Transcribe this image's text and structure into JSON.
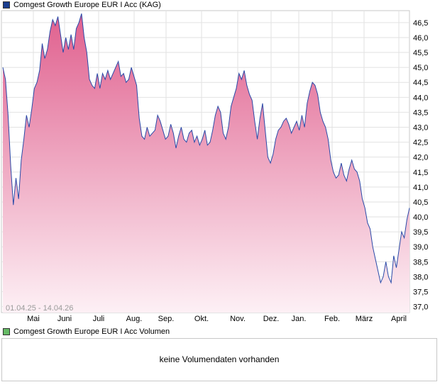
{
  "legend": {
    "price_label": "Comgest Growth Europe EUR I Acc (KAG)",
    "price_color": "#1a3d8f",
    "volume_label": "Comgest Growth Europe EUR I Acc Volumen",
    "volume_color": "#66bb66"
  },
  "volume": {
    "message": "keine Volumendaten vorhanden"
  },
  "chart_data": {
    "type": "area",
    "date_range_label": "01.04.25 - 14.04.26",
    "x_tick_labels": [
      "Mai",
      "Juni",
      "Juli",
      "Aug.",
      "Sep.",
      "Okt.",
      "Nov.",
      "Dez.",
      "Jan.",
      "Feb.",
      "März",
      "April"
    ],
    "y_tick_labels": [
      "37,0",
      "37,5",
      "38,0",
      "38,5",
      "39,0",
      "39,5",
      "40,0",
      "40,5",
      "41,0",
      "41,5",
      "42,0",
      "42,5",
      "43,0",
      "43,5",
      "44,0",
      "44,5",
      "45,0",
      "45,5",
      "46,0",
      "46,5"
    ],
    "ylim": [
      36.8,
      46.9
    ],
    "y_axis_side": "right",
    "grid": true,
    "line_color": "#2a4aa8",
    "fill_top_color": "#e0608e",
    "fill_bottom_color": "#fdf0f5",
    "series": [
      {
        "values": [
          45.0,
          44.6,
          43.4,
          41.7,
          40.4,
          41.3,
          40.6,
          41.9,
          42.6,
          43.4,
          43.0,
          43.6,
          44.3,
          44.5,
          44.9,
          45.8,
          45.3,
          45.6,
          46.2,
          46.6,
          46.4,
          46.7,
          46.1,
          45.5,
          46.0,
          45.6,
          46.1,
          45.6,
          46.3,
          46.5,
          46.8,
          46.0,
          45.5,
          44.6,
          44.4,
          44.3,
          44.8,
          44.3,
          44.8,
          44.6,
          44.9,
          44.6,
          44.8,
          45.0,
          45.2,
          44.7,
          44.8,
          44.5,
          44.6,
          45.0,
          44.7,
          44.4,
          43.3,
          42.7,
          42.6,
          43.0,
          42.7,
          42.8,
          42.9,
          43.4,
          43.2,
          42.9,
          42.6,
          42.7,
          43.1,
          42.8,
          42.3,
          42.7,
          43.0,
          42.6,
          42.5,
          42.8,
          42.9,
          42.5,
          42.7,
          42.4,
          42.6,
          42.9,
          42.4,
          42.5,
          42.9,
          43.4,
          43.7,
          43.5,
          42.8,
          42.6,
          43.0,
          43.7,
          44.0,
          44.3,
          44.8,
          44.6,
          44.9,
          44.4,
          44.1,
          43.9,
          43.2,
          42.6,
          43.3,
          43.8,
          42.9,
          42.0,
          41.8,
          42.1,
          42.6,
          42.9,
          43.0,
          43.2,
          43.3,
          43.1,
          42.8,
          43.0,
          43.2,
          42.9,
          43.4,
          43.0,
          43.8,
          44.2,
          44.5,
          44.4,
          44.1,
          43.5,
          43.2,
          43.0,
          42.6,
          41.9,
          41.5,
          41.3,
          41.4,
          41.8,
          41.4,
          41.2,
          41.6,
          41.9,
          41.6,
          41.5,
          41.2,
          40.6,
          40.3,
          39.8,
          39.6,
          39.0,
          38.6,
          38.2,
          37.8,
          38.0,
          38.5,
          38.0,
          37.8,
          38.7,
          38.3,
          38.9,
          39.5,
          39.3,
          39.9,
          40.3
        ]
      }
    ]
  }
}
